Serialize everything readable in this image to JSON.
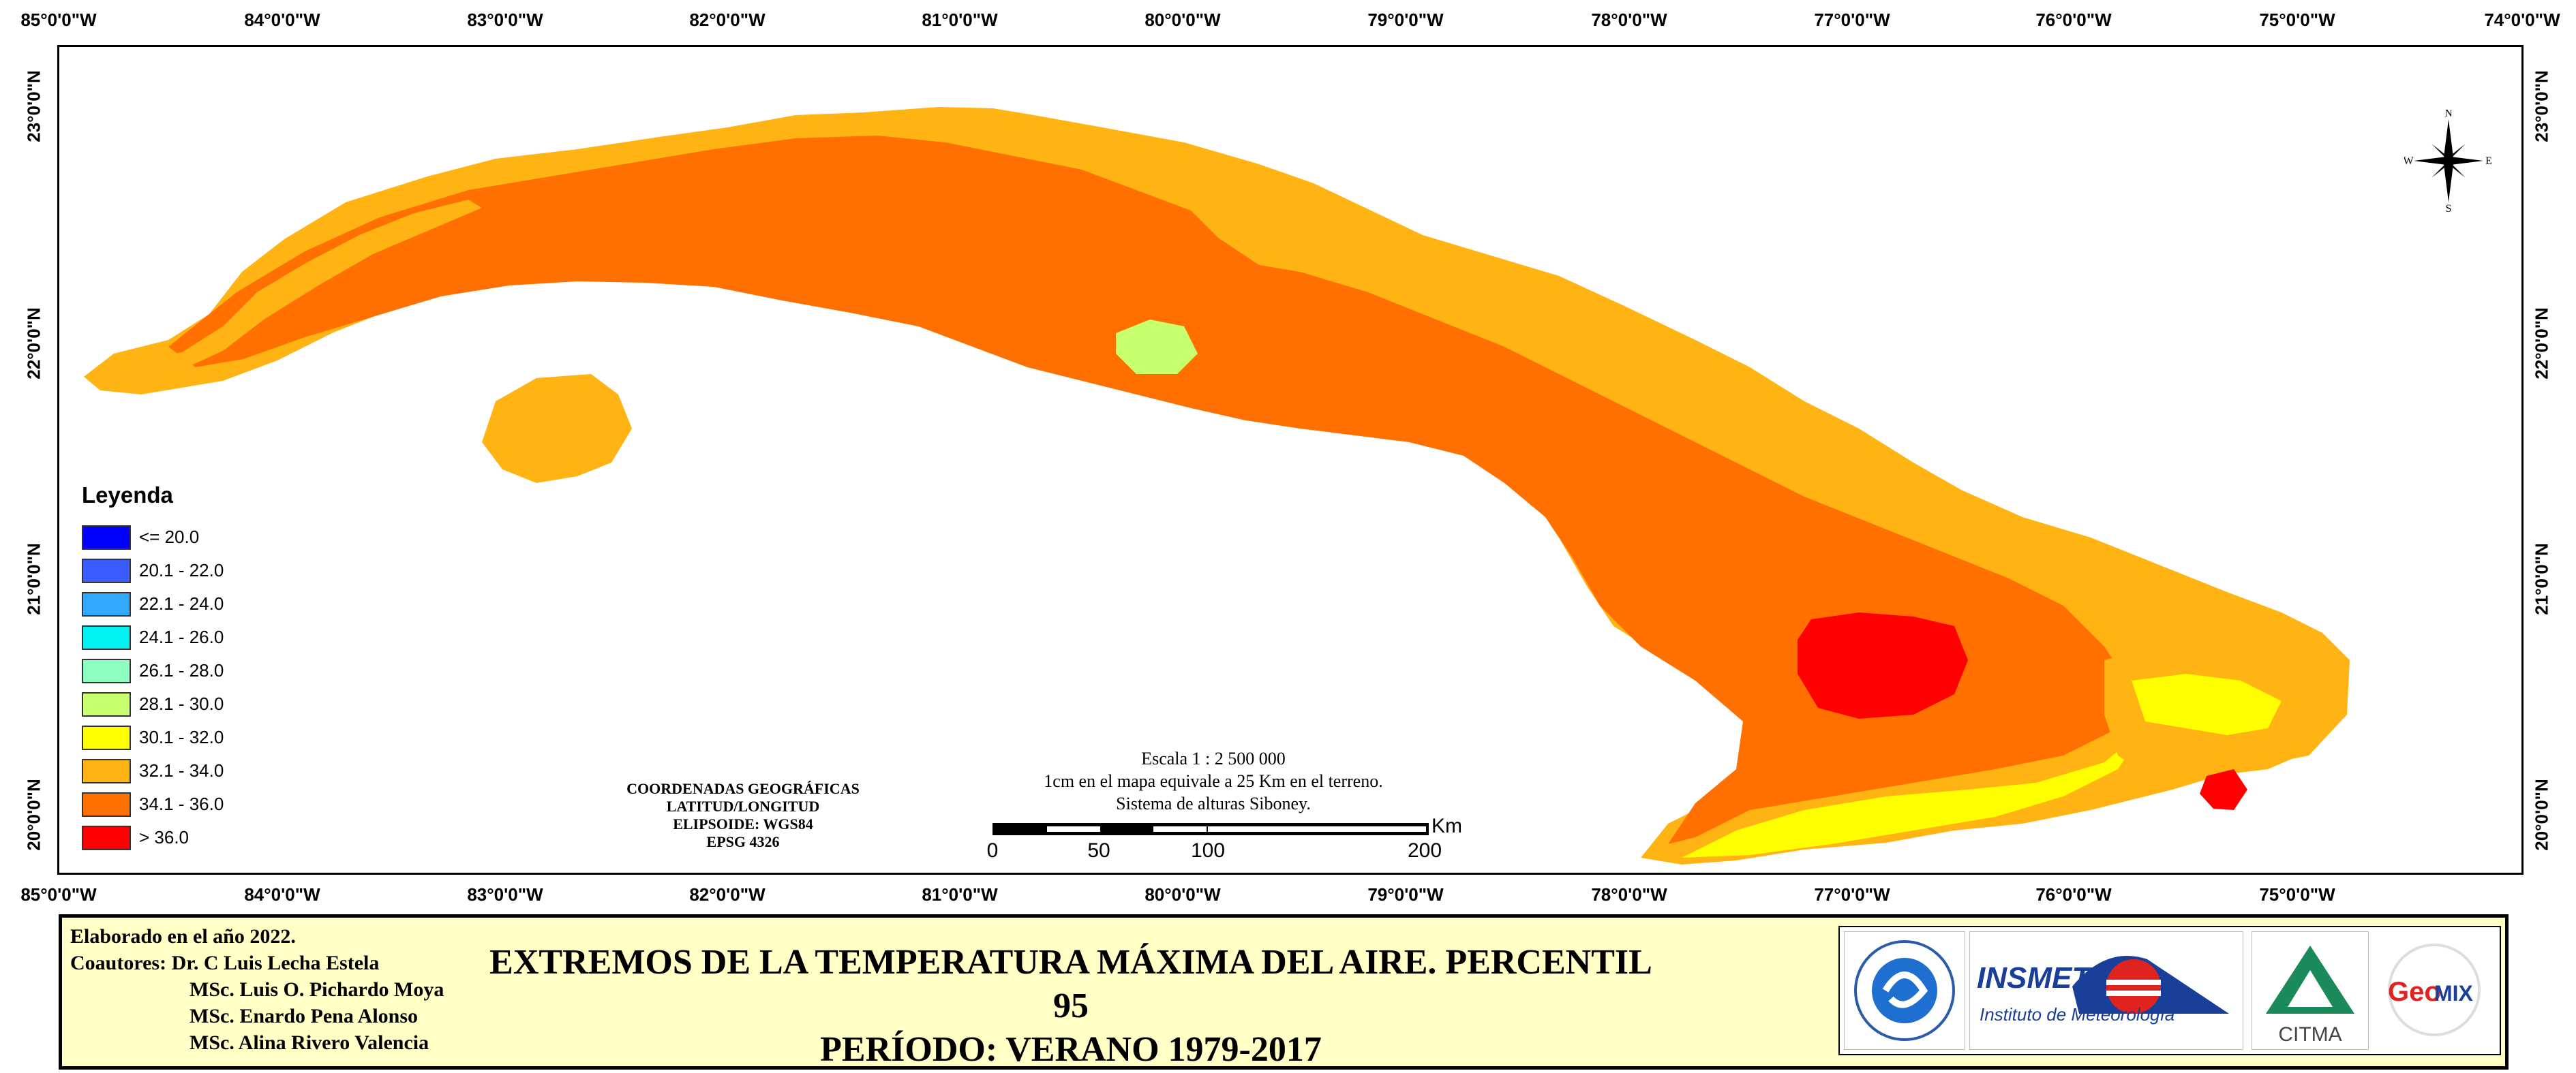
{
  "map": {
    "lon_ticks_top": [
      "85°0'0\"W",
      "84°0'0\"W",
      "83°0'0\"W",
      "82°0'0\"W",
      "81°0'0\"W",
      "80°0'0\"W",
      "79°0'0\"W",
      "78°0'0\"W",
      "77°0'0\"W",
      "76°0'0\"W",
      "75°0'0\"W",
      "74°0'0\"W"
    ],
    "lon_ticks_bottom": [
      "85°0'0\"W",
      "84°0'0\"W",
      "83°0'0\"W",
      "82°0'0\"W",
      "81°0'0\"W",
      "80°0'0\"W",
      "79°0'0\"W",
      "78°0'0\"W",
      "77°0'0\"W",
      "76°0'0\"W",
      "75°0'0\"W"
    ],
    "lat_ticks_left": [
      "23°0'0\"N",
      "22°0'0\"N",
      "21°0'0\"N",
      "20°0'0\"N"
    ],
    "lat_ticks_right": [
      "23°0'0\"N",
      "22°0'0\"N",
      "21°0'0\"N",
      "20°0'0\"N"
    ]
  },
  "legend": {
    "title": "Leyenda",
    "items": [
      {
        "label": "<= 20.0",
        "color": "#0000ff"
      },
      {
        "label": "20.1 - 22.0",
        "color": "#3a5cff"
      },
      {
        "label": "22.1 - 24.0",
        "color": "#33a8ff"
      },
      {
        "label": "24.1 - 26.0",
        "color": "#00f2f2"
      },
      {
        "label": "26.1 - 28.0",
        "color": "#8cffbe"
      },
      {
        "label": "28.1 - 30.0",
        "color": "#c8ff6e"
      },
      {
        "label": "30.1 - 32.0",
        "color": "#ffff00"
      },
      {
        "label": "32.1 - 34.0",
        "color": "#ffb414"
      },
      {
        "label": "34.1 - 36.0",
        "color": "#ff7000"
      },
      {
        "label": "> 36.0",
        "color": "#ff0000"
      }
    ]
  },
  "coords": {
    "line1": "COORDENADAS GEOGRÁFICAS",
    "line2": "LATITUD/LONGITUD",
    "line3": "ELIPSOIDE: WGS84",
    "line4": "EPSG 4326"
  },
  "scale": {
    "line1": "Escala 1 : 2 500 000",
    "line2": "1cm en el mapa equivale a 25 Km en el terreno.",
    "line3": "Sistema de alturas Siboney.",
    "labels": [
      "0",
      "50",
      "100",
      "200"
    ],
    "unit": "Km"
  },
  "compass": {
    "n": "N",
    "s": "S",
    "e": "E",
    "w": "W"
  },
  "footer": {
    "credits": [
      "Elaborado en el año 2022.",
      "Coautores: Dr. C Luis Lecha Estela",
      "MSc. Luis O. Pichardo Moya",
      "MSc. Enardo Pena Alonso",
      "MSc. Alina Rivero Valencia"
    ],
    "title_line1": "EXTREMOS DE LA TEMPERATURA MÁXIMA DEL AIRE. PERCENTIL 95",
    "title_line2": "PERÍODO: VERANO 1979-2017",
    "logo_insmet": "INSMET",
    "logo_insmet_sub": "Instituto de Meteorología",
    "logo_citma": "CITMA",
    "logo_geomix_geo": "Geo",
    "logo_geomix_mix": "MIX"
  }
}
